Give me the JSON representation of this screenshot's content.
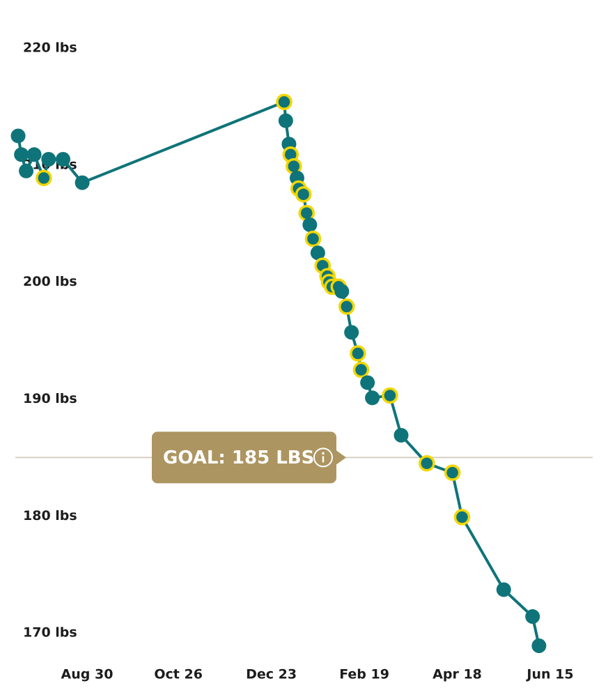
{
  "chart_data": {
    "type": "line",
    "x": [
      "Jul 18",
      "Jul 20",
      "Jul 23",
      "Jul 28",
      "Aug 3",
      "Aug 6",
      "Aug 15",
      "Aug 27",
      "Dec 31",
      "Jan 1",
      "Jan 3",
      "Jan 4",
      "Jan 6",
      "Jan 8",
      "Jan 9",
      "Jan 12",
      "Jan 14",
      "Jan 16",
      "Jan 18",
      "Jan 21",
      "Jan 24",
      "Jan 27",
      "Jan 28",
      "Jan 30",
      "Feb 3",
      "Feb 5",
      "Feb 8",
      "Feb 11",
      "Feb 15",
      "Feb 17",
      "Feb 21",
      "Feb 24",
      "Mar 7",
      "Mar 14",
      "Mar 30",
      "Apr 15",
      "Apr 21",
      "May 17",
      "Jun 4",
      "Jun 8"
    ],
    "series": [
      {
        "color": "#0f7479",
        "highlight_color": "#f2d600",
        "values": [
          212.5,
          210.9,
          209.5,
          210.9,
          208.9,
          210.5,
          210.5,
          208.5,
          215.4,
          213.8,
          211.8,
          210.9,
          209.9,
          208.9,
          208,
          207.5,
          205.9,
          204.9,
          203.7,
          202.5,
          201.4,
          200.5,
          200,
          199.6,
          199.6,
          199.2,
          197.9,
          195.7,
          193.9,
          192.5,
          191.4,
          190.1,
          190.3,
          186.9,
          184.5,
          183.7,
          179.9,
          173.7,
          171.4,
          168.9
        ],
        "highlighted": [
          false,
          false,
          false,
          false,
          true,
          false,
          false,
          false,
          true,
          false,
          false,
          true,
          true,
          false,
          true,
          true,
          true,
          false,
          true,
          false,
          true,
          true,
          true,
          true,
          true,
          false,
          true,
          false,
          true,
          true,
          false,
          false,
          true,
          false,
          true,
          true,
          true,
          false,
          false,
          false
        ]
      }
    ],
    "ylim": [
      168,
      224
    ],
    "yticks": [
      {
        "value": 170,
        "label": "170 lbs"
      },
      {
        "value": 180,
        "label": "180 lbs"
      },
      {
        "value": 190,
        "label": "190 lbs"
      },
      {
        "value": 200,
        "label": "200 lbs"
      },
      {
        "value": 210,
        "label": "210 lbs"
      },
      {
        "value": 220,
        "label": "220 lbs"
      }
    ],
    "xticks": [
      "Aug 30",
      "Oct 26",
      "Dec 23",
      "Feb 19",
      "Apr 18",
      "Jun 15"
    ],
    "goal": {
      "value": 185,
      "label": "GOAL: 185 LBS",
      "color": "#ad9561"
    }
  }
}
